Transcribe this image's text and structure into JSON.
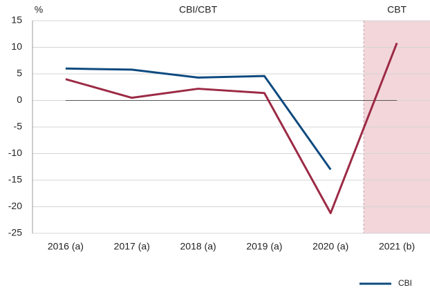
{
  "chart_data": {
    "type": "line",
    "y_unit_label": "%",
    "annotations": [
      {
        "text": "CBI/CBT"
      },
      {
        "text": "CBT"
      }
    ],
    "shaded_region": {
      "label": "CBT",
      "from_category_index": 5,
      "color": "#f2d6da"
    },
    "categories": [
      "2016 (a)",
      "2017 (a)",
      "2018 (a)",
      "2019 (a)",
      "2020 (a)",
      "2021 (b)"
    ],
    "series": [
      {
        "name": "CBI",
        "color": "#0d4a7f",
        "values": [
          6.0,
          5.8,
          4.3,
          4.6,
          -13.0,
          null
        ]
      },
      {
        "color": "#9c2a45",
        "values": [
          4.0,
          0.5,
          2.2,
          1.4,
          -21.2,
          10.8
        ]
      }
    ],
    "ylim": [
      -25,
      15
    ],
    "yticks": [
      15,
      10,
      5,
      0,
      -5,
      -10,
      -15,
      -20,
      -25
    ],
    "grid": true,
    "legend": "bottom-right"
  }
}
